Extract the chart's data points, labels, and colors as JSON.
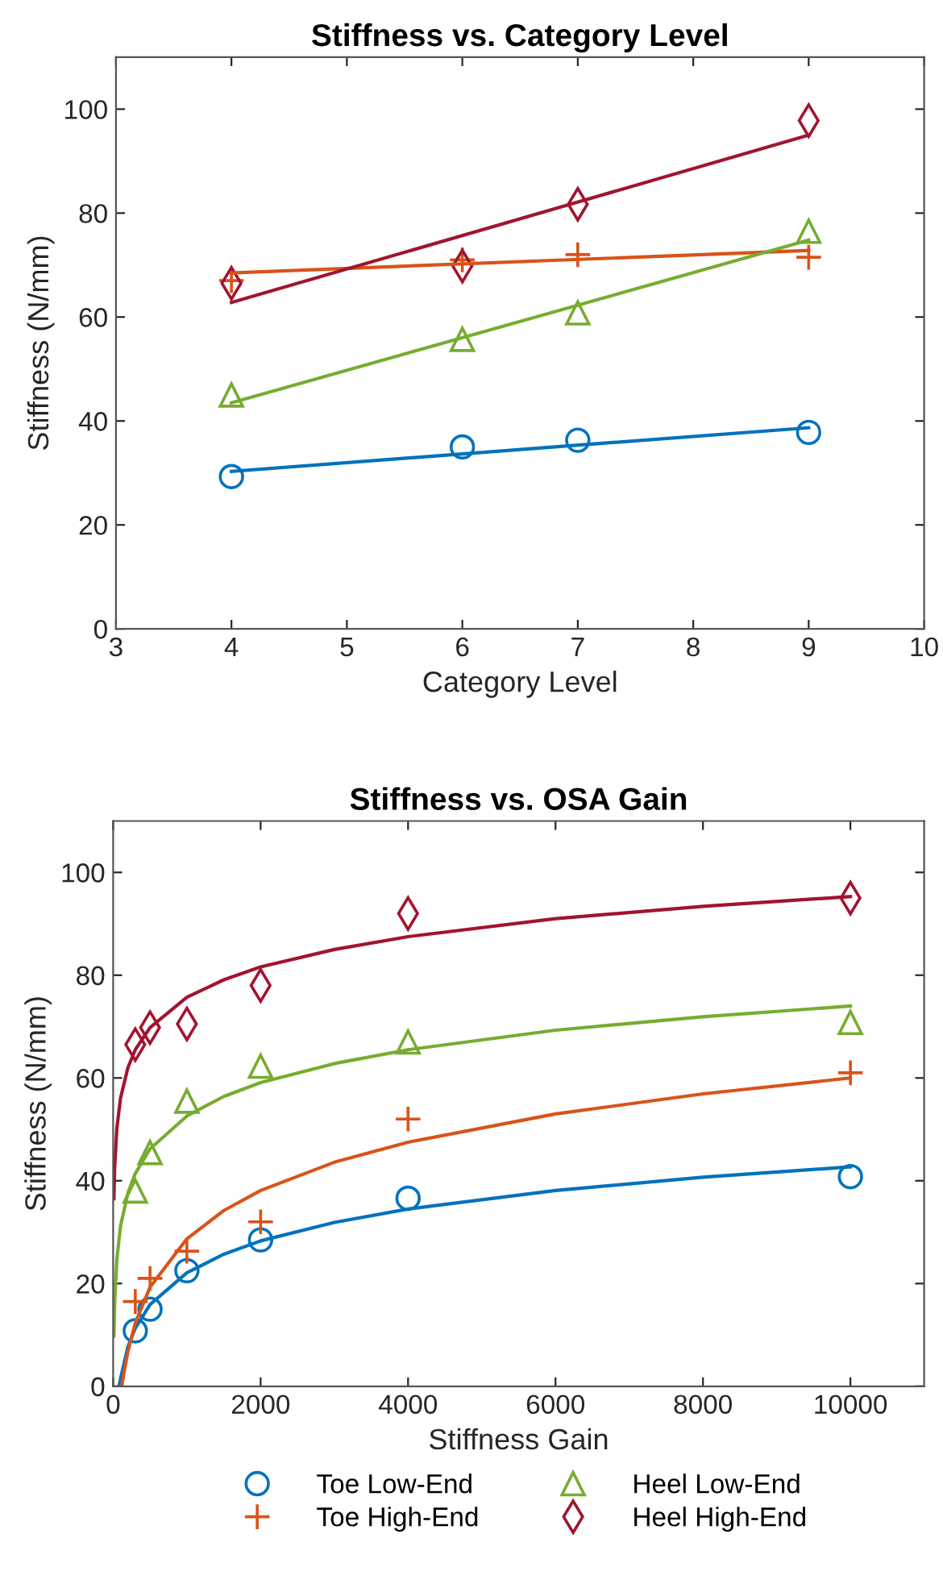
{
  "chart_data": [
    {
      "type": "scatter",
      "title": "Stiffness vs. Category Level",
      "xlabel": "Category Level",
      "ylabel": "Stiffness (N/mm)",
      "xlim": [
        3,
        10
      ],
      "xticks": [
        3,
        4,
        5,
        6,
        7,
        8,
        9,
        10
      ],
      "ylim": [
        0,
        110
      ],
      "yticks": [
        0,
        20,
        40,
        60,
        80,
        100
      ],
      "grid": false,
      "series": [
        {
          "color": "#0072bd",
          "marker": "circle",
          "x": [
            4,
            6,
            7,
            9
          ],
          "values": [
            29.3,
            35,
            36.3,
            37.8
          ]
        },
        {
          "color": "#d95319",
          "marker": "cross",
          "x": [
            4,
            6,
            7,
            9
          ],
          "values": [
            67,
            71,
            72,
            71.5
          ]
        },
        {
          "color": "#77ac30",
          "marker": "triangle",
          "x": [
            4,
            6,
            7,
            9
          ],
          "values": [
            45,
            55.7,
            60.8,
            76.5
          ]
        },
        {
          "color": "#a2142f",
          "marker": "diamond",
          "x": [
            4,
            6,
            7,
            9
          ],
          "values": [
            66.5,
            69.8,
            81.7,
            97.8
          ]
        },
        {
          "type": "line",
          "color": "#0072bd",
          "x": [
            4,
            9
          ],
          "values": [
            30.3,
            38.7
          ]
        },
        {
          "type": "line",
          "color": "#d95319",
          "x": [
            4,
            9
          ],
          "values": [
            68.5,
            72.8
          ]
        },
        {
          "type": "line",
          "color": "#77ac30",
          "x": [
            4,
            9
          ],
          "values": [
            43.5,
            74.8
          ]
        },
        {
          "type": "line",
          "color": "#a2142f",
          "x": [
            4,
            9
          ],
          "values": [
            62.8,
            95
          ]
        }
      ]
    },
    {
      "type": "scatter",
      "title": "Stiffness vs. OSA Gain",
      "xlabel": "Stiffness Gain",
      "ylabel": "Stiffness (N/mm)",
      "xlim": [
        0,
        11000
      ],
      "xticks": [
        0,
        2000,
        4000,
        6000,
        8000,
        10000
      ],
      "ylim": [
        0,
        110
      ],
      "yticks": [
        0,
        20,
        40,
        60,
        80,
        100
      ],
      "grid": false,
      "legend": "bottom",
      "series": [
        {
          "name": "Toe Low-End",
          "color": "#0072bd",
          "marker": "circle",
          "x": [
            300,
            500,
            1000,
            2000,
            4000,
            10000
          ],
          "values": [
            10.8,
            15,
            22.5,
            28.5,
            36.6,
            40.8
          ]
        },
        {
          "name": "Toe High-End",
          "color": "#d95319",
          "marker": "cross",
          "x": [
            300,
            500,
            1000,
            2000,
            4000,
            10000
          ],
          "values": [
            16.5,
            21,
            26.3,
            32,
            52,
            61
          ]
        },
        {
          "name": "Heel Low-End",
          "color": "#77ac30",
          "marker": "triangle",
          "x": [
            300,
            500,
            1000,
            2000,
            4000,
            10000
          ],
          "values": [
            38,
            45.5,
            55.5,
            62.3,
            67,
            70.8
          ]
        },
        {
          "name": "Heel High-End",
          "color": "#a2142f",
          "marker": "diamond",
          "x": [
            300,
            500,
            1000,
            2000,
            4000,
            10000
          ],
          "values": [
            66.5,
            69.8,
            70.5,
            78,
            92,
            95
          ]
        },
        {
          "type": "line",
          "color": "#0072bd",
          "x": [
            80,
            100,
            200,
            300,
            500,
            1000,
            1500,
            2000,
            3000,
            4000,
            6000,
            8000,
            10000
          ],
          "values": [
            0,
            1.5,
            7.7,
            11.3,
            15.9,
            22.1,
            25.7,
            28.3,
            31.9,
            34.5,
            38.1,
            40.7,
            42.7
          ]
        },
        {
          "type": "line",
          "color": "#d95319",
          "x": [
            120,
            150,
            200,
            300,
            500,
            1000,
            1500,
            2000,
            3000,
            4000,
            6000,
            8000,
            10000
          ],
          "values": [
            0.4,
            2.9,
            6.8,
            12.3,
            19.3,
            28.7,
            34.2,
            38.1,
            43.6,
            47.5,
            53,
            56.9,
            60
          ]
        },
        {
          "type": "line",
          "color": "#77ac30",
          "x": [
            10,
            20,
            50,
            100,
            200,
            300,
            500,
            1000,
            1500,
            2000,
            3000,
            4000,
            6000,
            8000,
            10000
          ],
          "values": [
            9.8,
            16.2,
            24.7,
            31.2,
            37.6,
            41.4,
            46.2,
            52.6,
            56.4,
            59.1,
            62.8,
            65.5,
            69.3,
            71.9,
            74
          ]
        },
        {
          "type": "line",
          "color": "#a2142f",
          "x": [
            10,
            20,
            50,
            100,
            200,
            300,
            500,
            1000,
            1500,
            2000,
            3000,
            4000,
            6000,
            8000,
            10000
          ],
          "values": [
            36.5,
            42.4,
            50.2,
            56.1,
            62,
            65.5,
            69.8,
            75.7,
            79.1,
            81.6,
            85,
            87.5,
            91,
            93.4,
            95.3
          ]
        }
      ]
    }
  ]
}
